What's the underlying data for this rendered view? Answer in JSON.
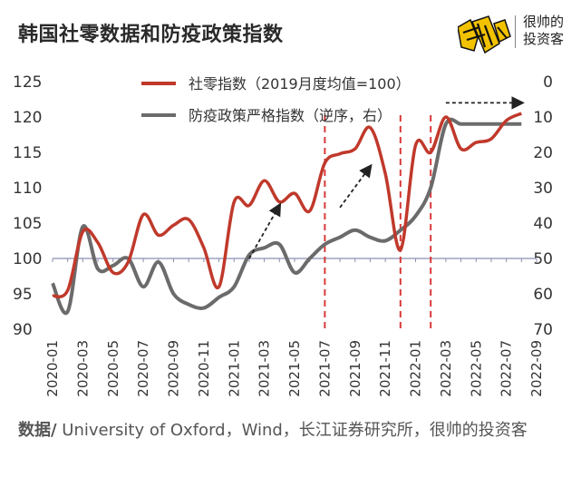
{
  "header": {
    "title": "韩国社零数据和防疫政策指数",
    "logo_line1": "很帅的",
    "logo_line2": "投资客"
  },
  "footer": {
    "label": "数据/",
    "text": " University of Oxford，Wind，长江证券研究所，很帅的投资客"
  },
  "colors": {
    "retail": "#c0392b",
    "policy": "#6b6b6b",
    "baseline": "#8a8fb0",
    "divider": "#d93a3a",
    "arrow": "#222222",
    "logo": "#f2c200"
  },
  "chart_data": {
    "type": "line",
    "x_tick_labels": [
      "2020-01",
      "2020-03",
      "2020-05",
      "2020-07",
      "2020-09",
      "2020-11",
      "2021-01",
      "2021-03",
      "2021-05",
      "2021-07",
      "2021-09",
      "2021-11",
      "2022-01",
      "2022-03",
      "2022-05",
      "2022-07",
      "2022-09"
    ],
    "y_left": {
      "lim": [
        90,
        125
      ],
      "ticks": [
        90,
        95,
        100,
        105,
        110,
        115,
        120,
        125
      ]
    },
    "y_right": {
      "lim": [
        70,
        0
      ],
      "inverted": true,
      "ticks": [
        0,
        10,
        20,
        30,
        40,
        50,
        60,
        70
      ]
    },
    "series": [
      {
        "name": "社零指数（2019月度均值=100）",
        "axis": "left",
        "x": [
          "2020-01",
          "2020-02",
          "2020-03",
          "2020-04",
          "2020-05",
          "2020-06",
          "2020-07",
          "2020-08",
          "2020-09",
          "2020-10",
          "2020-11",
          "2020-12",
          "2021-01",
          "2021-02",
          "2021-03",
          "2021-04",
          "2021-05",
          "2021-06",
          "2021-07",
          "2021-08",
          "2021-09",
          "2021-10",
          "2021-11",
          "2021-12",
          "2022-01",
          "2022-02",
          "2022-03",
          "2022-04",
          "2022-05",
          "2022-06",
          "2022-07",
          "2022-08"
        ],
        "values": [
          94.7,
          95.5,
          103.8,
          102.2,
          98.0,
          99.5,
          106.2,
          103.3,
          104.7,
          105.5,
          101.5,
          96.0,
          108.0,
          107.5,
          111.0,
          108.0,
          109.2,
          106.7,
          113.5,
          114.8,
          115.5,
          118.5,
          112.0,
          101.2,
          116.0,
          115.0,
          120.0,
          115.5,
          116.4,
          116.9,
          119.5,
          120.5
        ]
      },
      {
        "name": "防疫政策严格指数（逆序，右）",
        "axis": "right",
        "x": [
          "2020-01",
          "2020-02",
          "2020-03",
          "2020-04",
          "2020-05",
          "2020-06",
          "2020-07",
          "2020-08",
          "2020-09",
          "2020-10",
          "2020-11",
          "2020-12",
          "2021-01",
          "2021-02",
          "2021-03",
          "2021-04",
          "2021-05",
          "2021-06",
          "2021-07",
          "2021-08",
          "2021-09",
          "2021-10",
          "2021-11",
          "2021-12",
          "2022-01",
          "2022-02",
          "2022-03",
          "2022-04",
          "2022-05",
          "2022-06",
          "2022-07",
          "2022-08"
        ],
        "values": [
          57,
          65,
          41,
          53,
          52,
          50,
          58,
          51,
          60,
          63,
          64,
          61,
          58,
          49,
          47,
          46,
          54,
          50,
          46,
          44,
          42,
          44,
          45,
          42,
          38,
          30,
          12,
          12,
          12,
          12,
          12,
          12
        ]
      }
    ],
    "baseline_value": 100,
    "vertical_markers": [
      "2021-07",
      "2021-12",
      "2022-02"
    ],
    "trend_arrows": [
      {
        "from": [
          "2021-02",
          100
        ],
        "to": [
          "2021-04",
          107.5
        ]
      },
      {
        "from": [
          "2021-08",
          107.2
        ],
        "to": [
          "2021-10",
          113.0
        ]
      },
      {
        "from": [
          "2022-03",
          122.0
        ],
        "to": [
          "2022-08",
          122.0
        ]
      }
    ],
    "legend_position": "top-center",
    "grid": false
  }
}
